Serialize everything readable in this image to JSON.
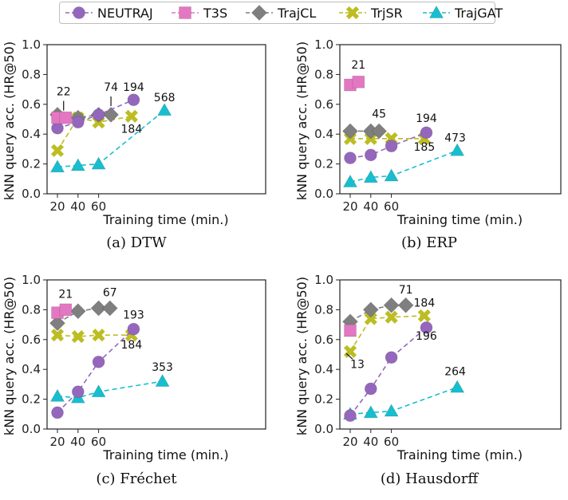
{
  "legend": [
    {
      "name": "NEUTRAJ",
      "color": "#9467bd",
      "marker": "circle"
    },
    {
      "name": "T3S",
      "color": "#e377c2",
      "marker": "square"
    },
    {
      "name": "TrajCL",
      "color": "#7f7f7f",
      "marker": "diamond"
    },
    {
      "name": "TrjSR",
      "color": "#bcbd22",
      "marker": "x"
    },
    {
      "name": "TrajGAT",
      "color": "#17becf",
      "marker": "triangle"
    }
  ],
  "chart_data": [
    {
      "type": "line",
      "caption": "(a) DTW",
      "xlabel": "Training time (min.)",
      "ylabel": "kNN query acc. (HR@50)",
      "xticks": [
        20,
        40,
        60
      ],
      "yticks": [
        0.0,
        0.2,
        0.4,
        0.6,
        0.8,
        1.0
      ],
      "ylim": [
        0,
        1
      ],
      "series": [
        {
          "name": "NEUTRAJ",
          "points": [
            [
              20,
              0.44
            ],
            [
              40,
              0.48
            ],
            [
              60,
              0.53
            ],
            [
              94,
              0.63
            ]
          ]
        },
        {
          "name": "T3S",
          "points": [
            [
              20,
              0.51
            ],
            [
              28,
              0.51
            ]
          ]
        },
        {
          "name": "TrajCL",
          "points": [
            [
              20,
              0.53
            ],
            [
              40,
              0.51
            ],
            [
              60,
              0.53
            ],
            [
              72,
              0.53
            ]
          ]
        },
        {
          "name": "TrjSR",
          "points": [
            [
              20,
              0.29
            ],
            [
              40,
              0.51
            ],
            [
              60,
              0.48
            ],
            [
              92,
              0.52
            ]
          ]
        },
        {
          "name": "TrajGAT",
          "points": [
            [
              20,
              0.18
            ],
            [
              40,
              0.19
            ],
            [
              60,
              0.2
            ],
            [
              124,
              0.56
            ]
          ]
        }
      ],
      "annotations": [
        {
          "text": "22",
          "x": 26,
          "y": 0.66,
          "tick": true
        },
        {
          "text": "74",
          "x": 72,
          "y": 0.69,
          "tick": true
        },
        {
          "text": "194",
          "x": 94,
          "y": 0.69
        },
        {
          "text": "184",
          "x": 92,
          "y": 0.41
        },
        {
          "text": "568",
          "x": 124,
          "y": 0.62
        }
      ]
    },
    {
      "type": "line",
      "caption": "(b) ERP",
      "xlabel": "Training time (min.)",
      "ylabel": "kNN query acc. (HR@50)",
      "xticks": [
        20,
        40,
        60
      ],
      "yticks": [
        0.0,
        0.2,
        0.4,
        0.6,
        0.8,
        1.0
      ],
      "ylim": [
        0,
        1
      ],
      "series": [
        {
          "name": "NEUTRAJ",
          "points": [
            [
              20,
              0.24
            ],
            [
              40,
              0.26
            ],
            [
              60,
              0.32
            ],
            [
              94,
              0.41
            ]
          ]
        },
        {
          "name": "T3S",
          "points": [
            [
              20,
              0.73
            ],
            [
              28,
              0.75
            ]
          ]
        },
        {
          "name": "TrajCL",
          "points": [
            [
              20,
              0.42
            ],
            [
              40,
              0.42
            ],
            [
              48,
              0.42
            ]
          ]
        },
        {
          "name": "TrjSR",
          "points": [
            [
              20,
              0.37
            ],
            [
              40,
              0.37
            ],
            [
              60,
              0.37
            ],
            [
              92,
              0.37
            ]
          ]
        },
        {
          "name": "TrajGAT",
          "points": [
            [
              20,
              0.08
            ],
            [
              40,
              0.11
            ],
            [
              60,
              0.12
            ],
            [
              124,
              0.29
            ]
          ]
        }
      ],
      "annotations": [
        {
          "text": "21",
          "x": 28,
          "y": 0.84
        },
        {
          "text": "45",
          "x": 48,
          "y": 0.51
        },
        {
          "text": "194",
          "x": 94,
          "y": 0.48
        },
        {
          "text": "185",
          "x": 92,
          "y": 0.29
        },
        {
          "text": "473",
          "x": 122,
          "y": 0.35
        }
      ]
    },
    {
      "type": "line",
      "caption": "(c) Fréchet",
      "xlabel": "Training time (min.)",
      "ylabel": "kNN query acc. (HR@50)",
      "xticks": [
        20,
        40,
        60
      ],
      "yticks": [
        0.0,
        0.2,
        0.4,
        0.6,
        0.8,
        1.0
      ],
      "ylim": [
        0,
        1
      ],
      "series": [
        {
          "name": "NEUTRAJ",
          "points": [
            [
              20,
              0.11
            ],
            [
              40,
              0.25
            ],
            [
              60,
              0.45
            ],
            [
              94,
              0.67
            ]
          ]
        },
        {
          "name": "T3S",
          "points": [
            [
              20,
              0.78
            ],
            [
              28,
              0.8
            ]
          ]
        },
        {
          "name": "TrajCL",
          "points": [
            [
              20,
              0.71
            ],
            [
              40,
              0.79
            ],
            [
              60,
              0.81
            ],
            [
              71,
              0.81
            ]
          ]
        },
        {
          "name": "TrjSR",
          "points": [
            [
              20,
              0.63
            ],
            [
              40,
              0.62
            ],
            [
              60,
              0.63
            ],
            [
              92,
              0.63
            ]
          ]
        },
        {
          "name": "TrajGAT",
          "points": [
            [
              20,
              0.22
            ],
            [
              40,
              0.21
            ],
            [
              60,
              0.25
            ],
            [
              122,
              0.32
            ]
          ]
        }
      ],
      "annotations": [
        {
          "text": "21",
          "x": 28,
          "y": 0.88
        },
        {
          "text": "67",
          "x": 71,
          "y": 0.89
        },
        {
          "text": "193",
          "x": 94,
          "y": 0.74
        },
        {
          "text": "184",
          "x": 92,
          "y": 0.54
        },
        {
          "text": "353",
          "x": 122,
          "y": 0.39
        }
      ]
    },
    {
      "type": "line",
      "caption": "(d) Hausdorff",
      "xlabel": "Training time (min.)",
      "ylabel": "kNN query acc. (HR@50)",
      "xticks": [
        20,
        40,
        60
      ],
      "yticks": [
        0.0,
        0.2,
        0.4,
        0.6,
        0.8,
        1.0
      ],
      "ylim": [
        0,
        1
      ],
      "series": [
        {
          "name": "NEUTRAJ",
          "points": [
            [
              20,
              0.09
            ],
            [
              40,
              0.27
            ],
            [
              60,
              0.48
            ],
            [
              94,
              0.68
            ]
          ]
        },
        {
          "name": "T3S",
          "points": [
            [
              20,
              0.66
            ]
          ]
        },
        {
          "name": "TrajCL",
          "points": [
            [
              20,
              0.72
            ],
            [
              40,
              0.8
            ],
            [
              60,
              0.83
            ],
            [
              74,
              0.83
            ]
          ]
        },
        {
          "name": "TrjSR",
          "points": [
            [
              20,
              0.52
            ],
            [
              40,
              0.74
            ],
            [
              60,
              0.75
            ],
            [
              92,
              0.76
            ]
          ]
        },
        {
          "name": "TrajGAT",
          "points": [
            [
              20,
              0.1
            ],
            [
              40,
              0.11
            ],
            [
              60,
              0.12
            ],
            [
              124,
              0.28
            ]
          ]
        }
      ],
      "annotations": [
        {
          "text": "13",
          "x": 27,
          "y": 0.41,
          "tick": true
        },
        {
          "text": "71",
          "x": 74,
          "y": 0.91
        },
        {
          "text": "184",
          "x": 92,
          "y": 0.82
        },
        {
          "text": "196",
          "x": 94,
          "y": 0.6
        },
        {
          "text": "264",
          "x": 122,
          "y": 0.36
        }
      ]
    }
  ]
}
